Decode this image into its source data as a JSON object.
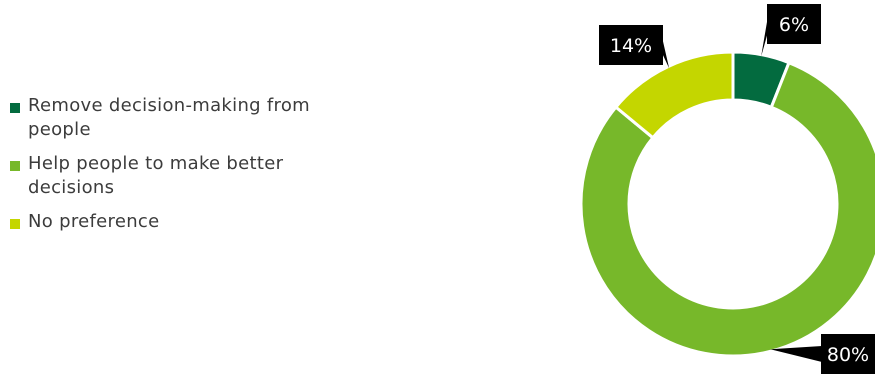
{
  "chart_data": {
    "type": "pie",
    "variant": "donut",
    "categories": [
      "Remove decision-making from people",
      "Help people to make better decisions",
      "No preference"
    ],
    "values": [
      6,
      80,
      14
    ],
    "data_labels": [
      "6%",
      "80%",
      "14%"
    ],
    "colors": [
      "#036b3f",
      "#77b82a",
      "#c4d600"
    ],
    "legend_position": "left",
    "start_angle_deg": 0,
    "direction": "clockwise",
    "title": "",
    "xlabel": "",
    "ylabel": ""
  }
}
